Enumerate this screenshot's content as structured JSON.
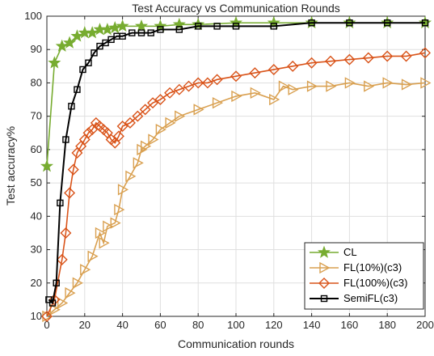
{
  "chart_data": {
    "type": "line",
    "title": "Test Accuracy vs Communication Rounds",
    "xlabel": "Communication rounds",
    "ylabel": "Test accuracy%",
    "xlim": [
      0,
      200
    ],
    "ylim": [
      10,
      100
    ],
    "x_ticks": [
      "0",
      "20",
      "40",
      "60",
      "80",
      "100",
      "120",
      "140",
      "160",
      "180",
      "200"
    ],
    "y_ticks": [
      "10",
      "20",
      "30",
      "40",
      "50",
      "60",
      "70",
      "80",
      "90",
      "100"
    ],
    "grid": true,
    "legend_position": "bottom-right",
    "series": [
      {
        "name": "CL",
        "color": "#77ac30",
        "marker": "star",
        "x": [
          0,
          4,
          8,
          12,
          16,
          20,
          24,
          28,
          32,
          36,
          40,
          50,
          60,
          70,
          80,
          100,
          120,
          140,
          160,
          180,
          200
        ],
        "y": [
          55,
          86,
          91,
          92,
          94,
          95,
          95,
          96,
          96,
          96.5,
          97,
          97,
          97,
          97.5,
          97.5,
          98,
          98,
          98,
          98,
          98,
          98
        ]
      },
      {
        "name": "FL(10%)(c3)",
        "color": "#d9a050",
        "marker": "triangle-right",
        "x": [
          0,
          4,
          8,
          12,
          16,
          20,
          24,
          28,
          30,
          32,
          36,
          38,
          40,
          44,
          48,
          50,
          52,
          56,
          60,
          65,
          70,
          80,
          90,
          100,
          110,
          120,
          125,
          130,
          140,
          150,
          160,
          170,
          180,
          190,
          200
        ],
        "y": [
          10,
          12,
          14,
          17,
          20,
          24,
          28,
          35,
          32,
          37,
          38,
          42,
          48,
          52,
          56,
          60,
          61,
          63,
          66,
          68,
          70,
          72,
          74,
          76,
          77,
          75,
          79,
          78,
          79,
          79,
          80,
          79,
          80,
          79.5,
          80
        ]
      },
      {
        "name": "FL(100%)(c3)",
        "color": "#d95319",
        "marker": "diamond",
        "x": [
          0,
          4,
          8,
          10,
          12,
          14,
          16,
          18,
          20,
          22,
          24,
          26,
          28,
          30,
          32,
          34,
          36,
          38,
          40,
          44,
          48,
          52,
          56,
          60,
          65,
          70,
          75,
          80,
          85,
          90,
          100,
          110,
          120,
          130,
          140,
          150,
          160,
          170,
          180,
          190,
          200
        ],
        "y": [
          10,
          15,
          27,
          35,
          47,
          54,
          59,
          61,
          63,
          65,
          66,
          68,
          67,
          66,
          65,
          63,
          62,
          64,
          67,
          68,
          70,
          72,
          74,
          75,
          77,
          78,
          79,
          80,
          80,
          81,
          82,
          83,
          84,
          85,
          86,
          86.5,
          87,
          87.5,
          88,
          88,
          89
        ]
      },
      {
        "name": "SemiFL(c3)",
        "color": "#000000",
        "marker": "square",
        "x": [
          1,
          3,
          5,
          7,
          10,
          13,
          16,
          19,
          22,
          25,
          28,
          31,
          34,
          37,
          40,
          45,
          50,
          55,
          60,
          70,
          80,
          90,
          100,
          120,
          140,
          160,
          180,
          200
        ],
        "y": [
          15,
          14,
          20,
          44,
          63,
          73,
          78,
          84,
          86,
          89,
          91,
          92,
          93,
          94,
          94,
          95,
          95,
          95,
          96,
          96,
          97,
          97,
          97,
          97,
          98,
          98,
          98,
          98
        ]
      }
    ]
  }
}
